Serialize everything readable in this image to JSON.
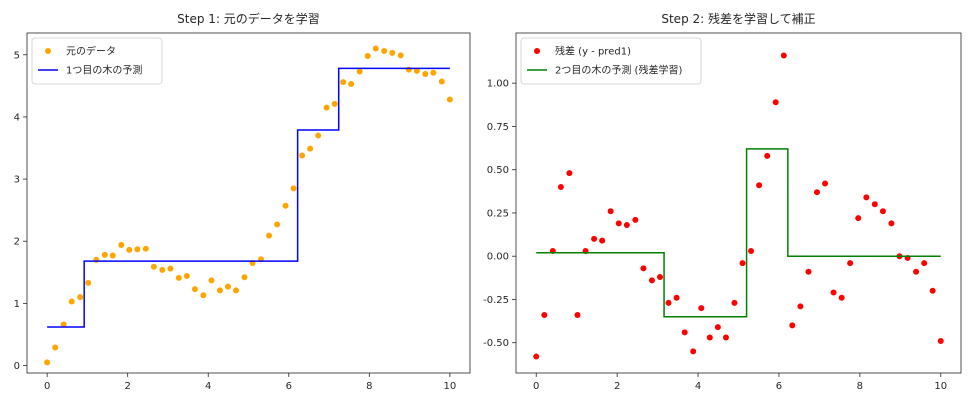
{
  "chart_data": [
    {
      "type": "scatter",
      "title": "Step 1: 元のデータを学習",
      "xlabel": "",
      "ylabel": "",
      "xlim": [
        -0.5,
        10.5
      ],
      "ylim": [
        -0.12,
        5.35
      ],
      "xticks": [
        "0",
        "2",
        "4",
        "6",
        "8",
        "10"
      ],
      "yticks": [
        "0",
        "1",
        "2",
        "3",
        "4",
        "5"
      ],
      "grid": false,
      "legend_position": "top-left",
      "series": [
        {
          "name": "元のデータ",
          "kind": "scatter",
          "color": "#ffa500",
          "points": [
            [
              0,
              0.05
            ],
            [
              0.2,
              0.29
            ],
            [
              0.41,
              0.66
            ],
            [
              0.61,
              1.03
            ],
            [
              0.82,
              1.1
            ],
            [
              1.02,
              1.33
            ],
            [
              1.22,
              1.7
            ],
            [
              1.43,
              1.78
            ],
            [
              1.63,
              1.77
            ],
            [
              1.84,
              1.94
            ],
            [
              2.04,
              1.86
            ],
            [
              2.24,
              1.87
            ],
            [
              2.45,
              1.88
            ],
            [
              2.65,
              1.59
            ],
            [
              2.86,
              1.54
            ],
            [
              3.06,
              1.56
            ],
            [
              3.27,
              1.41
            ],
            [
              3.47,
              1.44
            ],
            [
              3.67,
              1.23
            ],
            [
              3.88,
              1.13
            ],
            [
              4.08,
              1.37
            ],
            [
              4.29,
              1.21
            ],
            [
              4.49,
              1.27
            ],
            [
              4.69,
              1.21
            ],
            [
              4.9,
              1.42
            ],
            [
              5.1,
              1.65
            ],
            [
              5.31,
              1.71
            ],
            [
              5.51,
              2.09
            ],
            [
              5.71,
              2.27
            ],
            [
              5.92,
              2.57
            ],
            [
              6.12,
              2.85
            ],
            [
              6.33,
              3.38
            ],
            [
              6.53,
              3.49
            ],
            [
              6.73,
              3.7
            ],
            [
              6.94,
              4.15
            ],
            [
              7.14,
              4.21
            ],
            [
              7.35,
              4.56
            ],
            [
              7.55,
              4.53
            ],
            [
              7.76,
              4.73
            ],
            [
              7.96,
              4.98
            ],
            [
              8.16,
              5.1
            ],
            [
              8.37,
              5.06
            ],
            [
              8.57,
              5.03
            ],
            [
              8.78,
              4.99
            ],
            [
              8.98,
              4.76
            ],
            [
              9.18,
              4.74
            ],
            [
              9.39,
              4.69
            ],
            [
              9.59,
              4.71
            ],
            [
              9.8,
              4.57
            ],
            [
              10,
              4.28
            ]
          ]
        },
        {
          "name": "1つ目の木の予測",
          "kind": "step",
          "color": "#0000ff",
          "points": [
            [
              0,
              0.62
            ],
            [
              0.92,
              0.62
            ],
            [
              0.92,
              1.68
            ],
            [
              6.22,
              1.68
            ],
            [
              6.22,
              3.79
            ],
            [
              7.24,
              3.79
            ],
            [
              7.24,
              4.78
            ],
            [
              10,
              4.78
            ]
          ]
        }
      ]
    },
    {
      "type": "scatter",
      "title": "Step 2: 残差を学習して補正",
      "xlabel": "",
      "ylabel": "",
      "xlim": [
        -0.5,
        10.5
      ],
      "ylim": [
        -0.675,
        1.29
      ],
      "xticks": [
        "0",
        "2",
        "4",
        "6",
        "8",
        "10"
      ],
      "yticks": [
        "-0.50",
        "-0.25",
        "0.00",
        "0.25",
        "0.50",
        "0.75",
        "1.00"
      ],
      "grid": false,
      "legend_position": "top-left",
      "series": [
        {
          "name": "残差 (y - pred1)",
          "kind": "scatter",
          "color": "#ff0000",
          "points": [
            [
              0,
              -0.58
            ],
            [
              0.2,
              -0.34
            ],
            [
              0.41,
              0.03
            ],
            [
              0.61,
              0.4
            ],
            [
              0.82,
              0.48
            ],
            [
              1.02,
              -0.34
            ],
            [
              1.22,
              0.03
            ],
            [
              1.43,
              0.1
            ],
            [
              1.63,
              0.09
            ],
            [
              1.84,
              0.26
            ],
            [
              2.04,
              0.19
            ],
            [
              2.24,
              0.18
            ],
            [
              2.45,
              0.21
            ],
            [
              2.65,
              -0.07
            ],
            [
              2.86,
              -0.14
            ],
            [
              3.06,
              -0.12
            ],
            [
              3.27,
              -0.27
            ],
            [
              3.47,
              -0.24
            ],
            [
              3.67,
              -0.44
            ],
            [
              3.88,
              -0.55
            ],
            [
              4.08,
              -0.3
            ],
            [
              4.29,
              -0.47
            ],
            [
              4.49,
              -0.41
            ],
            [
              4.69,
              -0.47
            ],
            [
              4.9,
              -0.27
            ],
            [
              5.1,
              -0.04
            ],
            [
              5.31,
              0.03
            ],
            [
              5.51,
              0.41
            ],
            [
              5.71,
              0.58
            ],
            [
              5.92,
              0.89
            ],
            [
              6.12,
              1.16
            ],
            [
              6.33,
              -0.4
            ],
            [
              6.53,
              -0.29
            ],
            [
              6.73,
              -0.09
            ],
            [
              6.94,
              0.37
            ],
            [
              7.14,
              0.42
            ],
            [
              7.35,
              -0.21
            ],
            [
              7.55,
              -0.24
            ],
            [
              7.76,
              -0.04
            ],
            [
              7.96,
              0.22
            ],
            [
              8.16,
              0.34
            ],
            [
              8.37,
              0.3
            ],
            [
              8.57,
              0.26
            ],
            [
              8.78,
              0.19
            ],
            [
              8.98,
              0.0
            ],
            [
              9.18,
              -0.01
            ],
            [
              9.39,
              -0.09
            ],
            [
              9.59,
              -0.04
            ],
            [
              9.8,
              -0.2
            ],
            [
              10,
              -0.49
            ]
          ]
        },
        {
          "name": "2つ目の木の予測 (残差学習)",
          "kind": "step",
          "color": "#008000",
          "points": [
            [
              0,
              0.02
            ],
            [
              3.16,
              0.02
            ],
            [
              3.16,
              -0.35
            ],
            [
              5.2,
              -0.35
            ],
            [
              5.2,
              0.62
            ],
            [
              6.22,
              0.62
            ],
            [
              6.22,
              0.0
            ],
            [
              10,
              0.0
            ]
          ]
        }
      ]
    }
  ]
}
